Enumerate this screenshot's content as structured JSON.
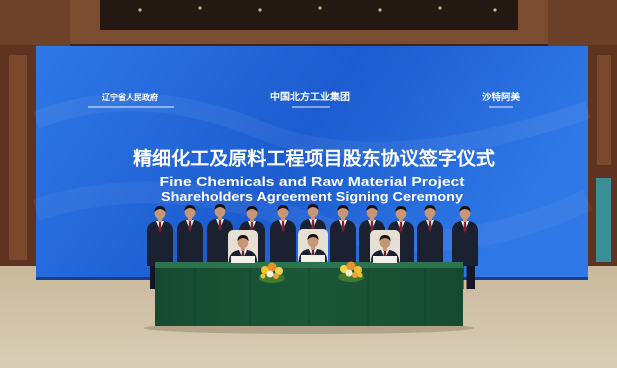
{
  "banner": {
    "organizations": [
      {
        "name": "辽宁省人民政府"
      },
      {
        "name": "中国北方工业集团"
      },
      {
        "name": "沙特阿美"
      }
    ],
    "title_zh": "精细化工及原料工程项目股东协议签字仪式",
    "title_en": [
      "Fine Chemicals and Raw Material Project",
      "Shareholders Agreement Signing Ceremony"
    ]
  },
  "colors": {
    "screen_blue": "#1c5cd0",
    "screen_blue_light": "#2f78e6",
    "tablecloth_green": "#1b5739",
    "tablecloth_top": "#2c7350",
    "carpet": "#c9b99c",
    "carpet_light": "#d9cdb6",
    "wood_wall": "#5e3421",
    "suit": "#1b2131",
    "skin": "#c79677"
  }
}
